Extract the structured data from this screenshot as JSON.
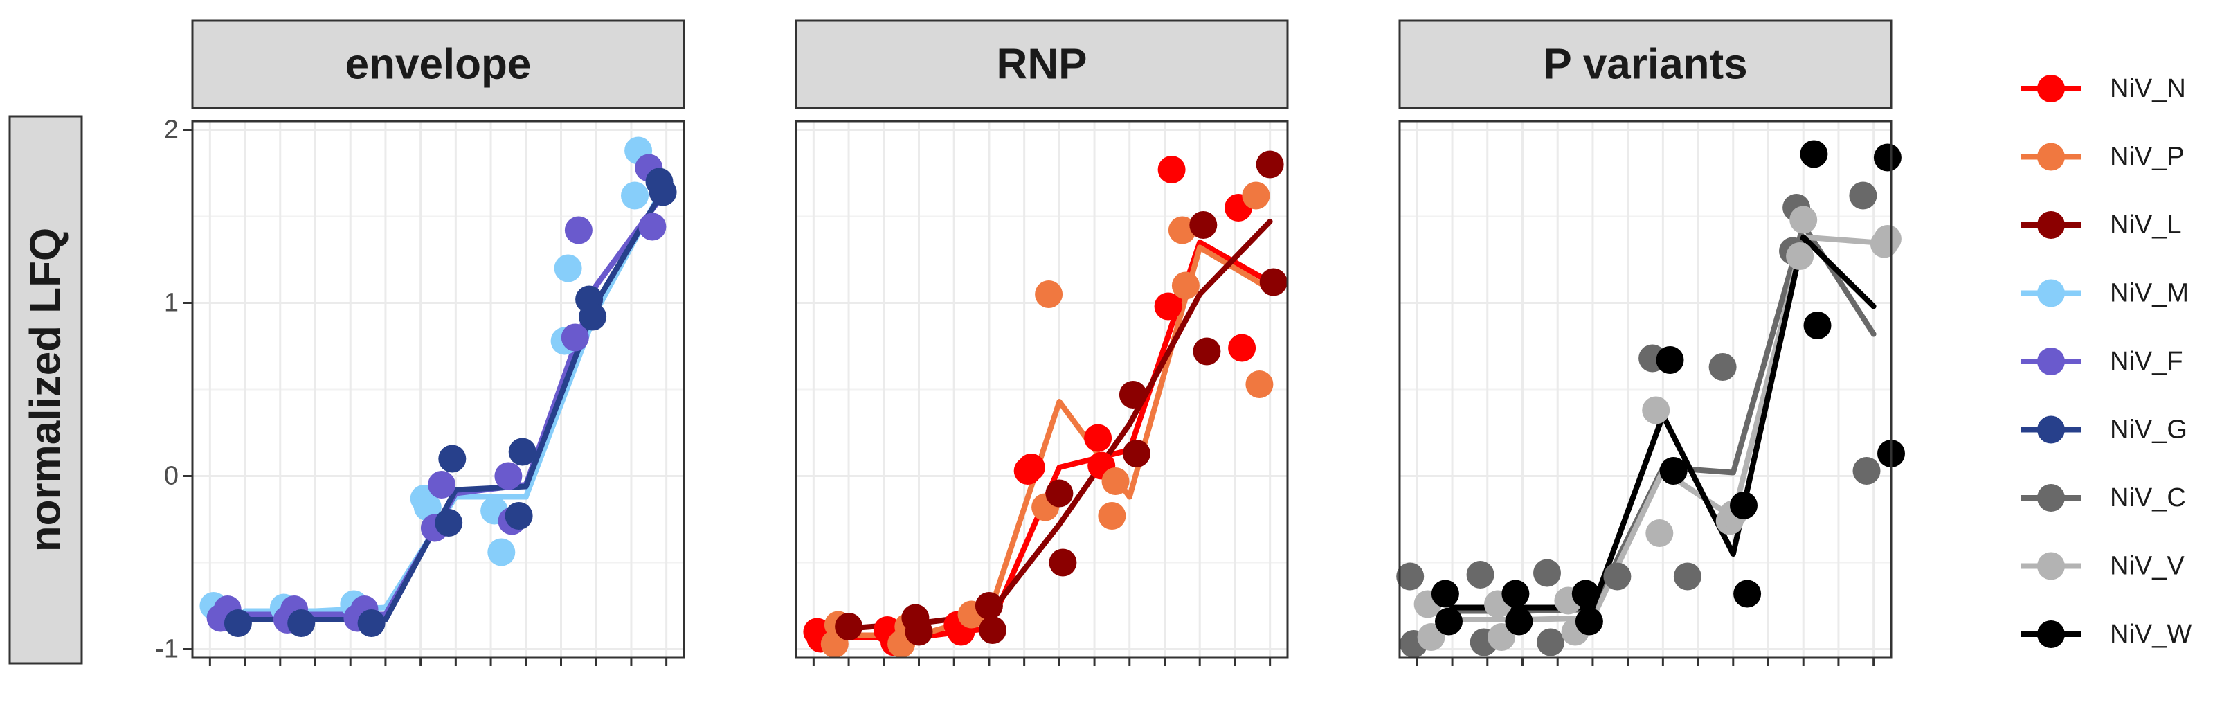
{
  "chart_data": {
    "type": "scatter",
    "ylabel": "normalized LFQ",
    "ylim": [
      -1.05,
      2.05
    ],
    "yticks": [
      -1,
      0,
      1,
      2
    ],
    "ytick_labels": [
      "-1",
      "0",
      "1",
      "2"
    ],
    "xlim": [
      0.5,
      14.5
    ],
    "grid": true,
    "legend_position": "right",
    "legend": [
      {
        "name": "NiV_N",
        "color": "#ff0000"
      },
      {
        "name": "NiV_P",
        "color": "#f07840"
      },
      {
        "name": "NiV_L",
        "color": "#8b0000"
      },
      {
        "name": "NiV_M",
        "color": "#87cefa"
      },
      {
        "name": "NiV_F",
        "color": "#6a5acd"
      },
      {
        "name": "NiV_G",
        "color": "#27408b"
      },
      {
        "name": "NiV_C",
        "color": "#696969"
      },
      {
        "name": "NiV_V",
        "color": "#b3b3b3"
      },
      {
        "name": "NiV_W",
        "color": "#000000"
      }
    ],
    "panels": [
      {
        "title": "envelope",
        "series": [
          {
            "name": "NiV_M",
            "color": "#87cefa",
            "points": [
              [
                1.1,
                -0.75
              ],
              [
                3.1,
                -0.76
              ],
              [
                5.1,
                -0.74
              ],
              [
                7.1,
                -0.13
              ],
              [
                7.2,
                -0.18
              ],
              [
                9.1,
                -0.2
              ],
              [
                9.3,
                -0.44
              ],
              [
                11.1,
                0.78
              ],
              [
                11.2,
                1.2
              ],
              [
                13.1,
                1.62
              ],
              [
                13.2,
                1.88
              ]
            ],
            "line": [
              [
                2,
                -0.78
              ],
              [
                4,
                -0.78
              ],
              [
                6,
                -0.76
              ],
              [
                8,
                -0.12
              ],
              [
                10,
                -0.12
              ],
              [
                12,
                0.95
              ],
              [
                14,
                1.7
              ]
            ]
          },
          {
            "name": "NiV_F",
            "color": "#6a5acd",
            "points": [
              [
                1.3,
                -0.82
              ],
              [
                1.5,
                -0.77
              ],
              [
                3.2,
                -0.83
              ],
              [
                3.4,
                -0.77
              ],
              [
                5.2,
                -0.82
              ],
              [
                5.4,
                -0.77
              ],
              [
                7.4,
                -0.3
              ],
              [
                7.6,
                -0.05
              ],
              [
                9.5,
                0
              ],
              [
                9.6,
                -0.26
              ],
              [
                11.4,
                0.8
              ],
              [
                11.5,
                1.42
              ],
              [
                13.5,
                1.78
              ],
              [
                13.6,
                1.44
              ]
            ],
            "line": [
              [
                2,
                -0.8
              ],
              [
                4,
                -0.8
              ],
              [
                6,
                -0.8
              ],
              [
                8,
                -0.1
              ],
              [
                10,
                -0.05
              ],
              [
                12,
                1.1
              ],
              [
                14,
                1.65
              ]
            ]
          },
          {
            "name": "NiV_G",
            "color": "#27408b",
            "points": [
              [
                1.8,
                -0.85
              ],
              [
                3.6,
                -0.85
              ],
              [
                5.6,
                -0.85
              ],
              [
                7.8,
                -0.27
              ],
              [
                7.9,
                0.1
              ],
              [
                9.8,
                -0.23
              ],
              [
                9.9,
                0.14
              ],
              [
                11.8,
                1.02
              ],
              [
                11.9,
                0.92
              ],
              [
                13.8,
                1.7
              ],
              [
                13.9,
                1.64
              ]
            ],
            "line": [
              [
                2,
                -0.83
              ],
              [
                4,
                -0.83
              ],
              [
                6,
                -0.83
              ],
              [
                8,
                -0.08
              ],
              [
                10,
                -0.06
              ],
              [
                12,
                1.0
              ],
              [
                14,
                1.68
              ]
            ]
          }
        ]
      },
      {
        "title": "RNP",
        "series": [
          {
            "name": "NiV_N",
            "color": "#ff0000",
            "points": [
              [
                1.1,
                -0.9
              ],
              [
                1.2,
                -0.94
              ],
              [
                3.1,
                -0.89
              ],
              [
                3.3,
                -0.96
              ],
              [
                5.1,
                -0.86
              ],
              [
                5.2,
                -0.9
              ],
              [
                7.1,
                0.03
              ],
              [
                7.2,
                0.05
              ],
              [
                9.1,
                0.22
              ],
              [
                9.2,
                0.06
              ],
              [
                11.1,
                0.98
              ],
              [
                11.2,
                1.77
              ],
              [
                13.1,
                1.55
              ],
              [
                13.2,
                0.74
              ]
            ],
            "line": [
              [
                2,
                -0.93
              ],
              [
                4,
                -0.93
              ],
              [
                6,
                -0.88
              ],
              [
                8,
                0.05
              ],
              [
                10,
                0.15
              ],
              [
                12,
                1.35
              ],
              [
                14,
                1.12
              ]
            ]
          },
          {
            "name": "NiV_P",
            "color": "#f07840",
            "points": [
              [
                1.6,
                -0.97
              ],
              [
                1.7,
                -0.86
              ],
              [
                3.5,
                -0.97
              ],
              [
                3.7,
                -0.87
              ],
              [
                5.5,
                -0.8
              ],
              [
                7.6,
                -0.18
              ],
              [
                7.7,
                1.05
              ],
              [
                9.5,
                -0.23
              ],
              [
                9.6,
                -0.03
              ],
              [
                11.5,
                1.42
              ],
              [
                11.6,
                1.1
              ],
              [
                13.6,
                1.62
              ],
              [
                13.7,
                0.53
              ]
            ],
            "line": [
              [
                2,
                -0.92
              ],
              [
                4,
                -0.92
              ],
              [
                6,
                -0.8
              ],
              [
                8,
                0.43
              ],
              [
                10,
                -0.12
              ],
              [
                12,
                1.32
              ],
              [
                14,
                1.08
              ]
            ]
          },
          {
            "name": "NiV_L",
            "color": "#8b0000",
            "points": [
              [
                2.0,
                -0.87
              ],
              [
                3.9,
                -0.82
              ],
              [
                4.0,
                -0.9
              ],
              [
                6.0,
                -0.75
              ],
              [
                6.1,
                -0.89
              ],
              [
                8.0,
                -0.1
              ],
              [
                8.1,
                -0.5
              ],
              [
                10.1,
                0.47
              ],
              [
                10.2,
                0.13
              ],
              [
                12.1,
                1.45
              ],
              [
                12.2,
                0.72
              ],
              [
                14.0,
                1.8
              ],
              [
                14.1,
                1.12
              ]
            ],
            "line": [
              [
                2,
                -0.88
              ],
              [
                4,
                -0.85
              ],
              [
                6,
                -0.8
              ],
              [
                8,
                -0.28
              ],
              [
                10,
                0.3
              ],
              [
                12,
                1.05
              ],
              [
                14,
                1.47
              ]
            ]
          }
        ]
      },
      {
        "title": "P variants",
        "series": [
          {
            "name": "NiV_C",
            "color": "#696969",
            "points": [
              [
                0.8,
                -0.58
              ],
              [
                0.9,
                -0.97
              ],
              [
                2.8,
                -0.57
              ],
              [
                2.9,
                -0.96
              ],
              [
                4.7,
                -0.56
              ],
              [
                4.8,
                -0.96
              ],
              [
                6.7,
                -0.58
              ],
              [
                7.7,
                0.68
              ],
              [
                8.7,
                -0.58
              ],
              [
                9.7,
                0.63
              ],
              [
                11.7,
                1.3
              ],
              [
                11.8,
                1.55
              ],
              [
                13.7,
                1.62
              ],
              [
                13.8,
                0.03
              ]
            ],
            "line": [
              [
                2,
                -0.78
              ],
              [
                4,
                -0.78
              ],
              [
                6,
                -0.77
              ],
              [
                8,
                0.05
              ],
              [
                10,
                0.02
              ],
              [
                12,
                1.45
              ],
              [
                14,
                0.82
              ]
            ]
          },
          {
            "name": "NiV_V",
            "color": "#b3b3b3",
            "points": [
              [
                1.3,
                -0.74
              ],
              [
                1.4,
                -0.93
              ],
              [
                3.3,
                -0.74
              ],
              [
                3.4,
                -0.93
              ],
              [
                5.3,
                -0.72
              ],
              [
                5.5,
                -0.9
              ],
              [
                7.8,
                0.38
              ],
              [
                7.9,
                -0.33
              ],
              [
                9.9,
                -0.26
              ],
              [
                10.0,
                -0.22
              ],
              [
                11.9,
                1.27
              ],
              [
                12.0,
                1.48
              ],
              [
                14.3,
                1.34
              ],
              [
                14.4,
                1.37
              ]
            ],
            "line": [
              [
                2,
                -0.83
              ],
              [
                4,
                -0.83
              ],
              [
                6,
                -0.82
              ],
              [
                8,
                0.03
              ],
              [
                10,
                -0.24
              ],
              [
                12,
                1.38
              ],
              [
                14,
                1.35
              ]
            ]
          },
          {
            "name": "NiV_W",
            "color": "#000000",
            "points": [
              [
                1.8,
                -0.68
              ],
              [
                1.9,
                -0.84
              ],
              [
                3.8,
                -0.68
              ],
              [
                3.9,
                -0.84
              ],
              [
                5.8,
                -0.68
              ],
              [
                5.9,
                -0.84
              ],
              [
                8.2,
                0.67
              ],
              [
                8.3,
                0.03
              ],
              [
                10.3,
                -0.17
              ],
              [
                10.4,
                -0.68
              ],
              [
                12.3,
                1.86
              ],
              [
                12.4,
                0.87
              ],
              [
                14.4,
                1.84
              ],
              [
                14.5,
                0.13
              ]
            ],
            "line": [
              [
                2,
                -0.76
              ],
              [
                4,
                -0.76
              ],
              [
                6,
                -0.76
              ],
              [
                8,
                0.35
              ],
              [
                10,
                -0.45
              ],
              [
                12,
                1.38
              ],
              [
                14,
                0.98
              ]
            ]
          }
        ]
      }
    ]
  }
}
